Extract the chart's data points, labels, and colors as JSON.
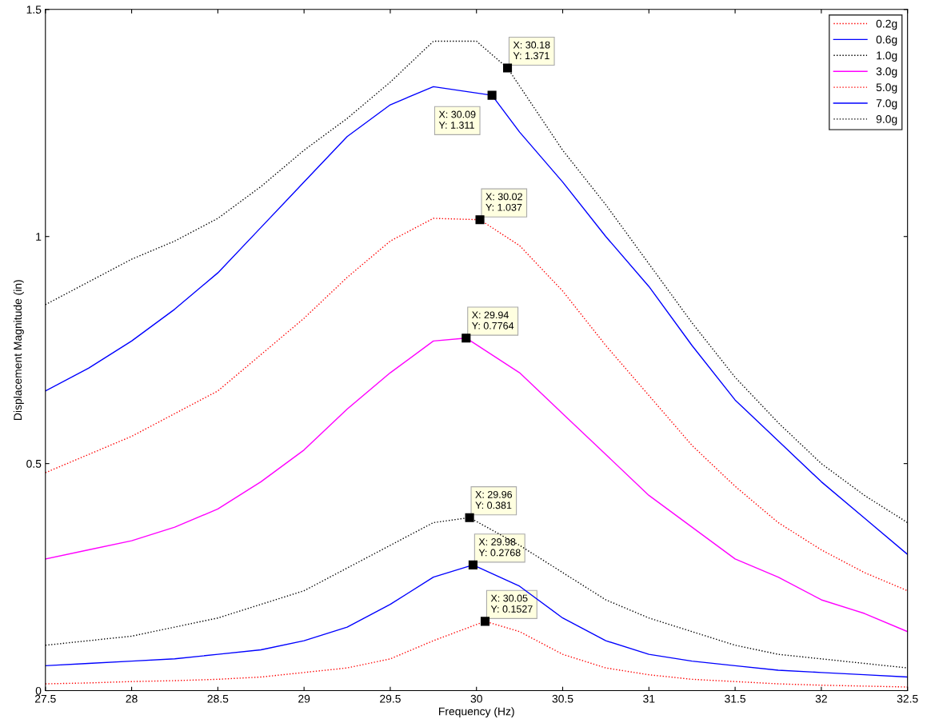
{
  "chart_data": {
    "type": "line",
    "xlabel": "Frequency (Hz)",
    "ylabel": "Displacement Magnitude (in)",
    "xlim": [
      27.5,
      32.5
    ],
    "ylim": [
      0,
      1.5
    ],
    "xticks": [
      27.5,
      28,
      28.5,
      29,
      29.5,
      30,
      30.5,
      31,
      31.5,
      32,
      32.5
    ],
    "yticks": [
      0,
      0.5,
      1,
      1.5
    ],
    "grid": false,
    "legend": "top right",
    "series": [
      {
        "name": "0.2g",
        "color": "#ff0000",
        "line_style": "dotted",
        "x": [
          27.5,
          27.75,
          28,
          28.25,
          28.5,
          28.75,
          29,
          29.25,
          29.5,
          29.75,
          30.05,
          30.25,
          30.5,
          30.75,
          31,
          31.25,
          31.5,
          31.75,
          32,
          32.25,
          32.5
        ],
        "values": [
          0.015,
          0.017,
          0.02,
          0.022,
          0.025,
          0.03,
          0.04,
          0.05,
          0.07,
          0.11,
          0.1527,
          0.13,
          0.08,
          0.05,
          0.035,
          0.025,
          0.02,
          0.015,
          0.012,
          0.01,
          0.008
        ]
      },
      {
        "name": "0.6g",
        "color": "#0000ff",
        "line_style": "solid",
        "x": [
          27.5,
          27.75,
          28,
          28.25,
          28.5,
          28.75,
          29,
          29.25,
          29.5,
          29.75,
          29.98,
          30.25,
          30.5,
          30.75,
          31,
          31.25,
          31.5,
          31.75,
          32,
          32.25,
          32.5
        ],
        "values": [
          0.055,
          0.06,
          0.065,
          0.07,
          0.08,
          0.09,
          0.11,
          0.14,
          0.19,
          0.25,
          0.2768,
          0.23,
          0.16,
          0.11,
          0.08,
          0.065,
          0.055,
          0.045,
          0.04,
          0.035,
          0.03
        ]
      },
      {
        "name": "1.0g",
        "color": "#000000",
        "line_style": "dotted",
        "x": [
          27.5,
          27.75,
          28,
          28.25,
          28.5,
          28.75,
          29,
          29.25,
          29.5,
          29.75,
          29.96,
          30.25,
          30.5,
          30.75,
          31,
          31.25,
          31.5,
          31.75,
          32,
          32.25,
          32.5
        ],
        "values": [
          0.1,
          0.11,
          0.12,
          0.14,
          0.16,
          0.19,
          0.22,
          0.27,
          0.32,
          0.37,
          0.381,
          0.32,
          0.26,
          0.2,
          0.16,
          0.13,
          0.1,
          0.08,
          0.07,
          0.06,
          0.05
        ]
      },
      {
        "name": "3.0g",
        "color": "#ff00ff",
        "line_style": "solid",
        "x": [
          27.5,
          27.75,
          28,
          28.25,
          28.5,
          28.75,
          29,
          29.25,
          29.5,
          29.75,
          29.94,
          30.25,
          30.5,
          30.75,
          31,
          31.25,
          31.5,
          31.75,
          32,
          32.25,
          32.5
        ],
        "values": [
          0.29,
          0.31,
          0.33,
          0.36,
          0.4,
          0.46,
          0.53,
          0.62,
          0.7,
          0.77,
          0.7764,
          0.7,
          0.61,
          0.52,
          0.43,
          0.36,
          0.29,
          0.25,
          0.2,
          0.17,
          0.13
        ]
      },
      {
        "name": "5.0g",
        "color": "#ff0000",
        "line_style": "dotted",
        "x": [
          27.5,
          27.75,
          28,
          28.25,
          28.5,
          28.75,
          29,
          29.25,
          29.5,
          29.75,
          30.02,
          30.25,
          30.5,
          30.75,
          31,
          31.25,
          31.5,
          31.75,
          32,
          32.25,
          32.5
        ],
        "values": [
          0.48,
          0.52,
          0.56,
          0.61,
          0.66,
          0.74,
          0.82,
          0.91,
          0.99,
          1.04,
          1.037,
          0.98,
          0.88,
          0.76,
          0.65,
          0.54,
          0.45,
          0.37,
          0.31,
          0.26,
          0.22
        ]
      },
      {
        "name": "7.0g",
        "color": "#0000ff",
        "line_style": "solid",
        "x": [
          27.5,
          27.75,
          28,
          28.25,
          28.5,
          28.75,
          29,
          29.25,
          29.5,
          29.75,
          30.09,
          30.25,
          30.5,
          30.75,
          31,
          31.25,
          31.5,
          31.75,
          32,
          32.25,
          32.5
        ],
        "values": [
          0.66,
          0.71,
          0.77,
          0.84,
          0.92,
          1.02,
          1.12,
          1.22,
          1.29,
          1.33,
          1.311,
          1.23,
          1.12,
          1.0,
          0.89,
          0.76,
          0.64,
          0.55,
          0.46,
          0.38,
          0.3
        ]
      },
      {
        "name": "9.0g",
        "color": "#000000",
        "line_style": "dotted",
        "x": [
          27.5,
          27.75,
          28,
          28.25,
          28.5,
          28.75,
          29,
          29.25,
          29.5,
          29.75,
          30,
          30.18,
          30.5,
          30.75,
          31,
          31.25,
          31.5,
          31.75,
          32,
          32.25,
          32.5
        ],
        "values": [
          0.85,
          0.9,
          0.95,
          0.99,
          1.04,
          1.11,
          1.19,
          1.26,
          1.34,
          1.43,
          1.43,
          1.371,
          1.19,
          1.07,
          0.94,
          0.81,
          0.69,
          0.59,
          0.5,
          0.43,
          0.37
        ]
      }
    ],
    "annotations": [
      {
        "text": "X: 30.18\nY: 1.371",
        "x": 30.18,
        "y": 1.371
      },
      {
        "text": "X: 30.09\nY: 1.311",
        "x": 30.09,
        "y": 1.311
      },
      {
        "text": "X: 30.02\nY: 1.037",
        "x": 30.02,
        "y": 1.037
      },
      {
        "text": "X: 29.94\nY: 0.7764",
        "x": 29.94,
        "y": 0.7764
      },
      {
        "text": "X: 29.96\nY: 0.381",
        "x": 29.96,
        "y": 0.381
      },
      {
        "text": "X: 29.98\nY: 0.2768",
        "x": 29.98,
        "y": 0.2768
      },
      {
        "text": "X: 30.05\nY: 0.1527",
        "x": 30.05,
        "y": 0.1527
      }
    ]
  }
}
